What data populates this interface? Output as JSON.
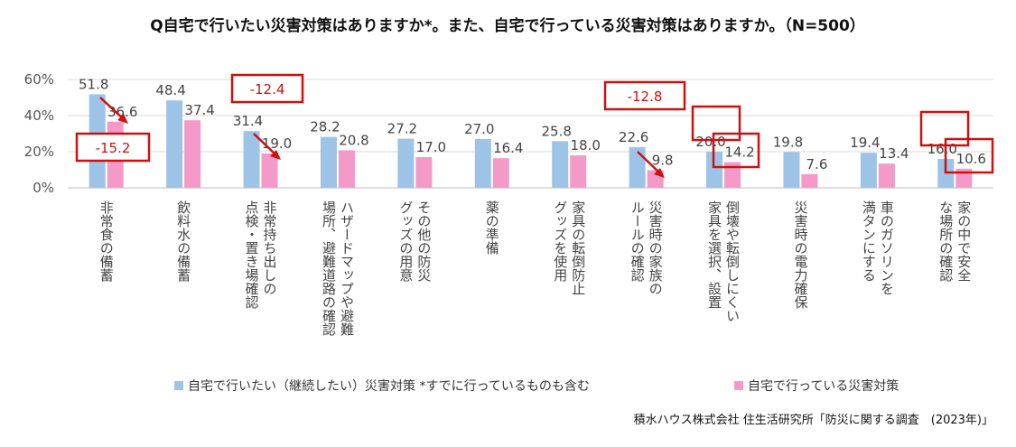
{
  "chart_data": {
    "type": "bar",
    "title": "Q自宅で行いたい災害対策はありますか*。また、自宅で行っている災害対策はありますか。（N=500）",
    "ylim": [
      0,
      60
    ],
    "yticks": [
      "0%",
      "20%",
      "40%",
      "60%"
    ],
    "grid": true,
    "legend_position": "bottom",
    "categories": [
      [
        "非常食の備蓄"
      ],
      [
        "飲料水の備蓄"
      ],
      [
        "非常持ち出しの",
        "点検・置き場確認"
      ],
      [
        "ハザードマップや避難",
        "場所、避難道路の確認"
      ],
      [
        "その他の防災",
        "グッズの用意"
      ],
      [
        "薬の準備"
      ],
      [
        "家具の転倒防止",
        "グッズを使用"
      ],
      [
        "災害時の家族の",
        "ルールの確認"
      ],
      [
        "倒壊や転倒しにくい",
        "家具を選択、設置"
      ],
      [
        "災害時の電力確保"
      ],
      [
        "車のガソリンを",
        "満タンにする"
      ],
      [
        "家の中で安全",
        "な場所の確認"
      ]
    ],
    "series": [
      {
        "name": "自宅で行いたい（継続したい）災害対策 *すでに行っているものも含む",
        "color": "#9DC3E6",
        "values": [
          51.8,
          48.4,
          31.4,
          28.2,
          27.2,
          27.0,
          25.8,
          22.6,
          20.0,
          19.8,
          19.4,
          16.0
        ],
        "labels": [
          "51.8",
          "48.4",
          "31.4",
          "28.2",
          "27.2",
          "27.0",
          "25.8",
          "22.6",
          "20.0",
          "19.8",
          "19.4",
          "16.0"
        ]
      },
      {
        "name": "自宅で行っている災害対策",
        "color": "#F49AC8",
        "values": [
          36.6,
          37.4,
          19.0,
          20.8,
          17.0,
          16.4,
          18.0,
          9.8,
          14.2,
          7.6,
          13.4,
          10.6
        ],
        "labels": [
          "36.6",
          "37.4",
          "19.0",
          "20.8",
          "17.0",
          "16.4",
          "18.0",
          "9.8",
          "14.2",
          "7.6",
          "13.4",
          "10.6"
        ]
      }
    ],
    "annotations": [
      {
        "text": "-15.2",
        "category": 0
      },
      {
        "text": "-12.4",
        "category": 2
      },
      {
        "text": "-12.8",
        "category": 7
      }
    ],
    "boxed_labels": [
      "20.0",
      "14.2",
      "16.0",
      "10.6"
    ]
  },
  "source": "積水ハウス株式会社 住生活研究所「防災に関する調査　(2023年)」",
  "colors": {
    "accent": "#cc1111",
    "grid": "#d9d9d9"
  }
}
